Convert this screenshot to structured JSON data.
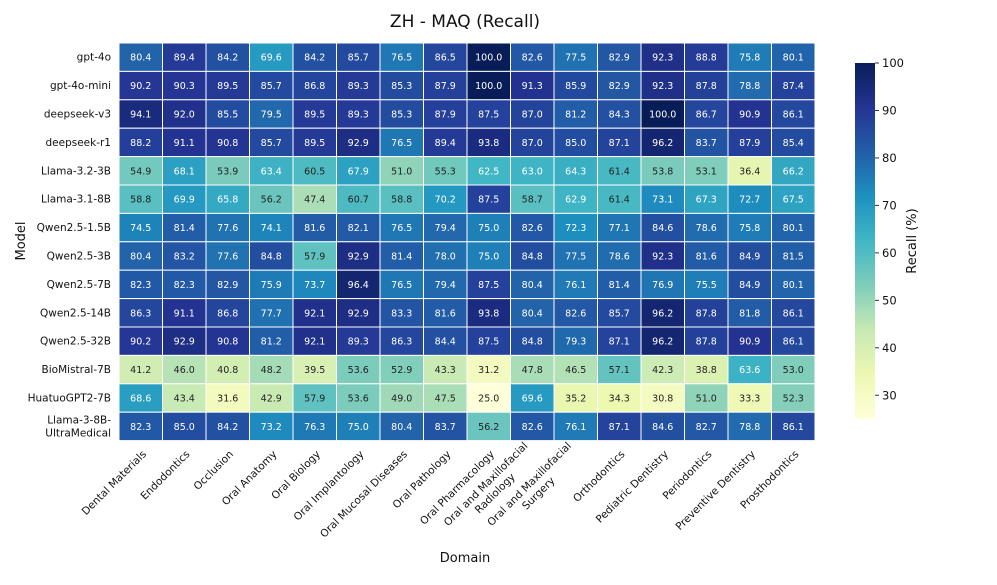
{
  "chart_data": {
    "type": "heatmap",
    "title": "ZH - MAQ (Recall)",
    "xlabel": "Domain",
    "ylabel": "Model",
    "colorbar_label": "Recall (%)",
    "colorscale": "YlGnBu",
    "vmin": 25,
    "vmax": 100,
    "colorbar_ticks": [
      "30",
      "40",
      "50",
      "60",
      "70",
      "80",
      "90",
      "100"
    ],
    "domains": [
      "Dental Materials",
      "Endodontics",
      "Occlusion",
      "Oral Anatomy",
      "Oral Biology",
      "Oral Implantology",
      "Oral Mucosal Diseases",
      "Oral Pathology",
      "Oral Pharmacology",
      "Oral and Maxillofacial Radiology",
      "Oral and Maxillofacial Surgery",
      "Orthodontics",
      "Pediatric Dentistry",
      "Periodontics",
      "Preventive Dentistry",
      "Prosthodontics"
    ],
    "domain_label_lines": [
      [
        "Dental Materials"
      ],
      [
        "Endodontics"
      ],
      [
        "Occlusion"
      ],
      [
        "Oral Anatomy"
      ],
      [
        "Oral Biology"
      ],
      [
        "Oral Implantology"
      ],
      [
        "Oral Mucosal Diseases"
      ],
      [
        "Oral Pathology"
      ],
      [
        "Oral Pharmacology"
      ],
      [
        "Oral and Maxillofacial",
        "Radiology"
      ],
      [
        "Oral and Maxillofacial",
        "Surgery"
      ],
      [
        "Orthodontics"
      ],
      [
        "Pediatric Dentistry"
      ],
      [
        "Periodontics"
      ],
      [
        "Preventive Dentistry"
      ],
      [
        "Prosthodontics"
      ]
    ],
    "models": [
      "gpt-4o",
      "gpt-4o-mini",
      "deepseek-v3",
      "deepseek-r1",
      "Llama-3.2-3B",
      "Llama-3.1-8B",
      "Qwen2.5-1.5B",
      "Qwen2.5-3B",
      "Qwen2.5-7B",
      "Qwen2.5-14B",
      "Qwen2.5-32B",
      "BioMistral-7B",
      "HuatuoGPT2-7B",
      "Llama-3-8B-UltraMedical"
    ],
    "model_label_lines": [
      [
        "gpt-4o"
      ],
      [
        "gpt-4o-mini"
      ],
      [
        "deepseek-v3"
      ],
      [
        "deepseek-r1"
      ],
      [
        "Llama-3.2-3B"
      ],
      [
        "Llama-3.1-8B"
      ],
      [
        "Qwen2.5-1.5B"
      ],
      [
        "Qwen2.5-3B"
      ],
      [
        "Qwen2.5-7B"
      ],
      [
        "Qwen2.5-14B"
      ],
      [
        "Qwen2.5-32B"
      ],
      [
        "BioMistral-7B"
      ],
      [
        "HuatuoGPT2-7B"
      ],
      [
        "Llama-3-8B-",
        "UltraMedical"
      ]
    ],
    "values": [
      [
        "80.4",
        "89.4",
        "84.2",
        "69.6",
        "84.2",
        "85.7",
        "76.5",
        "86.5",
        "100.0",
        "82.6",
        "77.5",
        "82.9",
        "92.3",
        "88.8",
        "75.8",
        "80.1"
      ],
      [
        "90.2",
        "90.3",
        "89.5",
        "85.7",
        "86.8",
        "89.3",
        "85.3",
        "87.9",
        "100.0",
        "91.3",
        "85.9",
        "82.9",
        "92.3",
        "87.8",
        "78.8",
        "87.4"
      ],
      [
        "94.1",
        "92.0",
        "85.5",
        "79.5",
        "89.5",
        "89.3",
        "85.3",
        "87.9",
        "87.5",
        "87.0",
        "81.2",
        "84.3",
        "100.0",
        "86.7",
        "90.9",
        "86.1"
      ],
      [
        "88.2",
        "91.1",
        "90.8",
        "85.7",
        "89.5",
        "92.9",
        "76.5",
        "89.4",
        "93.8",
        "87.0",
        "85.0",
        "87.1",
        "96.2",
        "83.7",
        "87.9",
        "85.4"
      ],
      [
        "54.9",
        "68.1",
        "53.9",
        "63.4",
        "60.5",
        "67.9",
        "51.0",
        "55.3",
        "62.5",
        "63.0",
        "64.3",
        "61.4",
        "53.8",
        "53.1",
        "36.4",
        "66.2"
      ],
      [
        "58.8",
        "69.9",
        "65.8",
        "56.2",
        "47.4",
        "60.7",
        "58.8",
        "70.2",
        "87.5",
        "58.7",
        "62.9",
        "61.4",
        "73.1",
        "67.3",
        "72.7",
        "67.5"
      ],
      [
        "74.5",
        "81.4",
        "77.6",
        "74.1",
        "81.6",
        "82.1",
        "76.5",
        "79.4",
        "75.0",
        "82.6",
        "72.3",
        "77.1",
        "84.6",
        "78.6",
        "75.8",
        "80.1"
      ],
      [
        "80.4",
        "83.2",
        "77.6",
        "84.8",
        "57.9",
        "92.9",
        "81.4",
        "78.0",
        "75.0",
        "84.8",
        "77.5",
        "78.6",
        "92.3",
        "81.6",
        "84.9",
        "81.5"
      ],
      [
        "82.3",
        "82.3",
        "82.9",
        "75.9",
        "73.7",
        "96.4",
        "76.5",
        "79.4",
        "87.5",
        "80.4",
        "76.1",
        "81.4",
        "76.9",
        "75.5",
        "84.9",
        "80.1"
      ],
      [
        "86.3",
        "91.1",
        "86.8",
        "77.7",
        "92.1",
        "92.9",
        "83.3",
        "81.6",
        "93.8",
        "80.4",
        "82.6",
        "85.7",
        "96.2",
        "87.8",
        "81.8",
        "86.1"
      ],
      [
        "90.2",
        "92.9",
        "90.8",
        "81.2",
        "92.1",
        "89.3",
        "86.3",
        "84.4",
        "87.5",
        "84.8",
        "79.3",
        "87.1",
        "96.2",
        "87.8",
        "90.9",
        "86.1"
      ],
      [
        "41.2",
        "46.0",
        "40.8",
        "48.2",
        "39.5",
        "53.6",
        "52.9",
        "43.3",
        "31.2",
        "47.8",
        "46.5",
        "57.1",
        "42.3",
        "38.8",
        "63.6",
        "53.0"
      ],
      [
        "68.6",
        "43.4",
        "31.6",
        "42.9",
        "57.9",
        "53.6",
        "49.0",
        "47.5",
        "25.0",
        "69.6",
        "35.2",
        "34.3",
        "30.8",
        "51.0",
        "33.3",
        "52.3"
      ],
      [
        "82.3",
        "85.0",
        "84.2",
        "73.2",
        "76.3",
        "75.0",
        "80.4",
        "83.7",
        "56.2",
        "82.6",
        "76.1",
        "87.1",
        "84.6",
        "82.7",
        "78.8",
        "86.1"
      ]
    ]
  }
}
